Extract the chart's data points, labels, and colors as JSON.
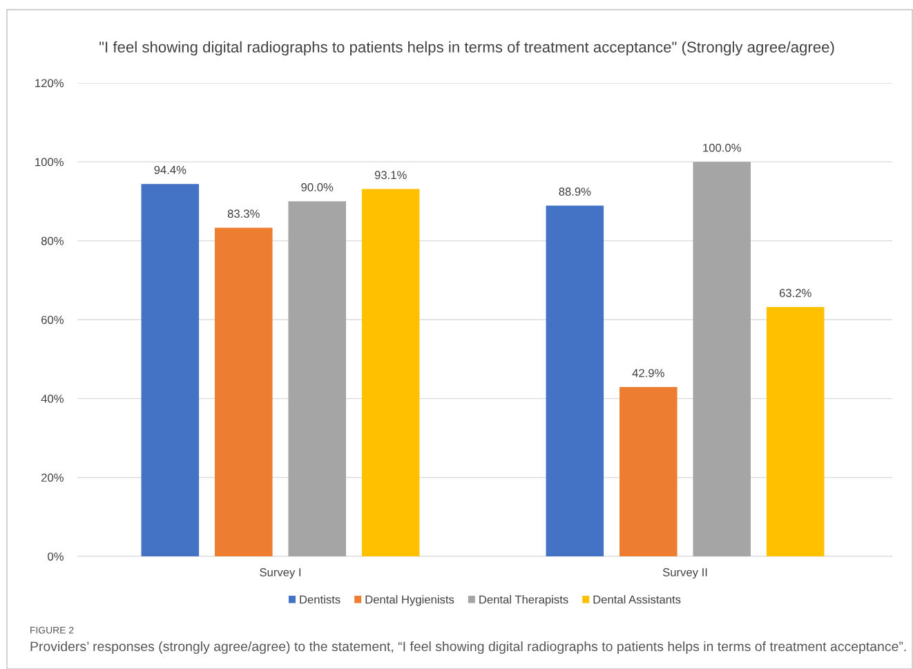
{
  "chart_data": {
    "type": "bar",
    "title": "\"I feel showing digital radiographs to patients helps in terms of treatment acceptance\" (Strongly agree/agree)",
    "categories": [
      "Survey I",
      "Survey II"
    ],
    "series": [
      {
        "name": "Dentists",
        "color": "#4472c4",
        "values": [
          94.4,
          88.9
        ],
        "value_labels": [
          "94.4%",
          "88.9%"
        ]
      },
      {
        "name": "Dental Hygienists",
        "color": "#ed7d31",
        "values": [
          83.3,
          42.9
        ],
        "value_labels": [
          "83.3%",
          "42.9%"
        ]
      },
      {
        "name": "Dental Therapists",
        "color": "#a5a5a5",
        "values": [
          90.0,
          100.0
        ],
        "value_labels": [
          "90.0%",
          "100.0%"
        ]
      },
      {
        "name": "Dental Assistants",
        "color": "#ffc000",
        "values": [
          93.1,
          63.2
        ],
        "value_labels": [
          "93.1%",
          "63.2%"
        ]
      }
    ],
    "ylim": [
      0,
      120
    ],
    "yticks": [
      {
        "value": 0,
        "label": "0%"
      },
      {
        "value": 20,
        "label": "20%"
      },
      {
        "value": 40,
        "label": "40%"
      },
      {
        "value": 60,
        "label": "60%"
      },
      {
        "value": 80,
        "label": "80%"
      },
      {
        "value": 100,
        "label": "100%"
      },
      {
        "value": 120,
        "label": "120%"
      }
    ],
    "grid": "y",
    "legend": "bottom",
    "annotations": [
      "FIGURE 2",
      "Providers’ responses (strongly agree/agree) to the statement, “I feel showing digital radiographs to patients helps in terms of treatment acceptance”."
    ]
  }
}
